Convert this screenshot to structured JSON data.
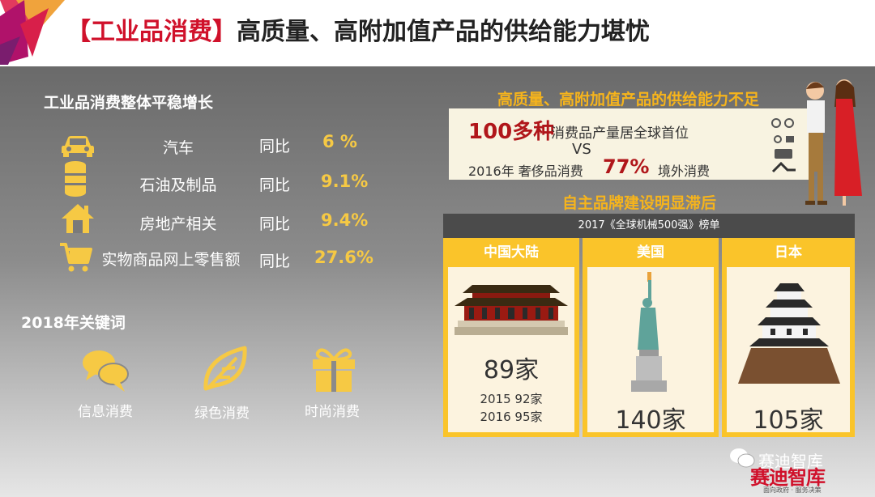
{
  "header": {
    "title_bracket": "【工业品消费】",
    "title_main": "高质量、高附加值产品的供给能力堪忧"
  },
  "left": {
    "section_title": "工业品消费整体平稳增长",
    "yoy_label": "同比",
    "items": [
      {
        "icon": "car-icon",
        "name": "汽车",
        "value": "6 %"
      },
      {
        "icon": "oil-barrel-icon",
        "name": "石油及制品",
        "value": "9.1%"
      },
      {
        "icon": "house-icon",
        "name": "房地产相关",
        "value": "9.4%"
      },
      {
        "icon": "shopping-cart-icon",
        "name": "实物商品网上零售额",
        "value": "27.6%"
      }
    ],
    "keywords_title": "2018年关键词",
    "keywords": [
      {
        "icon": "speech-bubbles-icon",
        "label": "信息消费"
      },
      {
        "icon": "leaf-icon",
        "label": "绿色消费"
      },
      {
        "icon": "gift-box-icon",
        "label": "时尚消费"
      }
    ]
  },
  "right": {
    "supply_title": "高质量、高附加值产品的供给能力不足",
    "compare": {
      "big_number": "100多种",
      "big_text": "消费品产量居全球首位",
      "vs": "VS",
      "year_text": "2016年 奢侈品消费",
      "pct": "77%",
      "tail": "境外消费"
    },
    "brand_title": "自主品牌建设明显滞后",
    "chart_title": "2017《全球机械500强》榜单",
    "colors": {
      "accent": "#fac42a",
      "title_red": "#d0112b",
      "number_red": "#b0161a"
    }
  },
  "chart_data": {
    "type": "table",
    "title": "2017《全球机械500强》榜单",
    "categories": [
      "中国大陆",
      "美国",
      "日本"
    ],
    "values": [
      89,
      140,
      105
    ],
    "value_labels": [
      "89家",
      "140家",
      "105家"
    ],
    "extra": {
      "中国大陆": [
        "2015 92家",
        "2016 95家"
      ]
    }
  },
  "watermark": {
    "text": "赛迪智库",
    "logo": "赛迪智库",
    "sub": "面向政府 · 服务决策"
  }
}
